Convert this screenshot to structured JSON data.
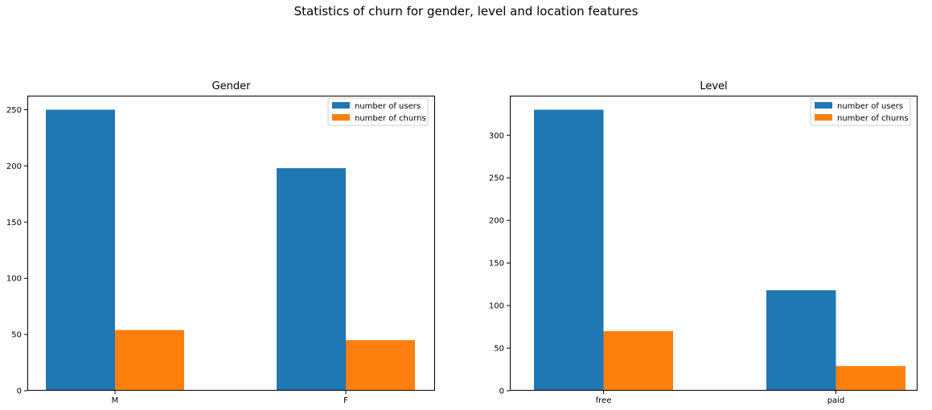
{
  "figure": {
    "suptitle": "Statistics of churn for gender, level and location features"
  },
  "colors": {
    "users": "#1f77b4",
    "churns": "#ff7f0e",
    "axis": "#000000",
    "legend_border": "#cccccc"
  },
  "chart_data": [
    {
      "type": "bar",
      "title": "Gender",
      "xlabel": "",
      "ylabel": "",
      "categories": [
        "M",
        "F"
      ],
      "series": [
        {
          "name": "number of users",
          "values": [
            250,
            198
          ]
        },
        {
          "name": "number of churns",
          "values": [
            54,
            45
          ]
        }
      ],
      "ylim": [
        0,
        262.5
      ],
      "yticks": [
        0,
        50,
        100,
        150,
        200,
        250
      ],
      "legend": "top-right",
      "grid": false
    },
    {
      "type": "bar",
      "title": "Level",
      "xlabel": "",
      "ylabel": "",
      "categories": [
        "free",
        "paid"
      ],
      "series": [
        {
          "name": "number of users",
          "values": [
            330,
            118
          ]
        },
        {
          "name": "number of churns",
          "values": [
            70,
            29
          ]
        }
      ],
      "ylim": [
        0,
        346.5
      ],
      "yticks": [
        0,
        50,
        100,
        150,
        200,
        250,
        300
      ],
      "legend": "top-right",
      "grid": false
    }
  ]
}
